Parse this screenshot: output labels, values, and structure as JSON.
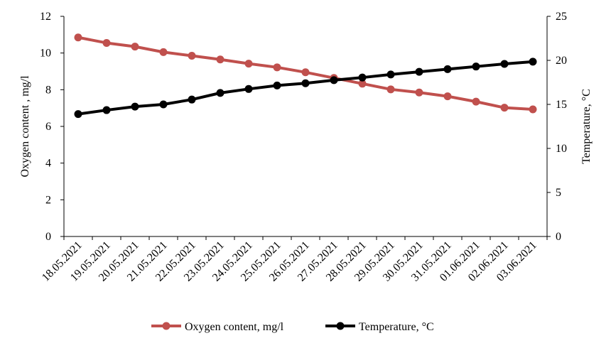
{
  "chart_data": {
    "type": "line",
    "title": "",
    "categories": [
      "18.05.2021",
      "19.05.2021",
      "20.05.2021",
      "21.05.2021",
      "22.05.2021",
      "23.05.2021",
      "24.05.2021",
      "25.05.2021",
      "26.05.2021",
      "27.05.2021",
      "28.05.2021",
      "29.05.2021",
      "30.05.2021",
      "31.05.2021",
      "01.06.2021",
      "02.06.2021",
      "03.06.2021"
    ],
    "ylabel": "Oxygen content , mg/l",
    "y2label": "Temperature, °C",
    "ylim": [
      0,
      12
    ],
    "y2lim": [
      0,
      25
    ],
    "yticks": [
      "0",
      "2",
      "4",
      "6",
      "8",
      "10",
      "12"
    ],
    "y2ticks": [
      "0",
      "5",
      "10",
      "15",
      "20",
      "25"
    ],
    "grid": false,
    "legend_position": "bottom",
    "series": [
      {
        "name": "Oxygen content, mg/l",
        "axis": "left",
        "color": "#C0504D",
        "values": [
          10.85,
          10.55,
          10.35,
          10.05,
          9.85,
          9.65,
          9.42,
          9.22,
          8.95,
          8.64,
          8.33,
          8.02,
          7.85,
          7.64,
          7.35,
          7.02,
          6.93
        ]
      },
      {
        "name": "Temperature, °C",
        "axis": "right",
        "color": "#000000",
        "values": [
          13.9,
          14.35,
          14.75,
          15.0,
          15.55,
          16.3,
          16.75,
          17.15,
          17.4,
          17.75,
          18.05,
          18.4,
          18.7,
          19.0,
          19.3,
          19.6,
          19.85
        ]
      }
    ]
  }
}
